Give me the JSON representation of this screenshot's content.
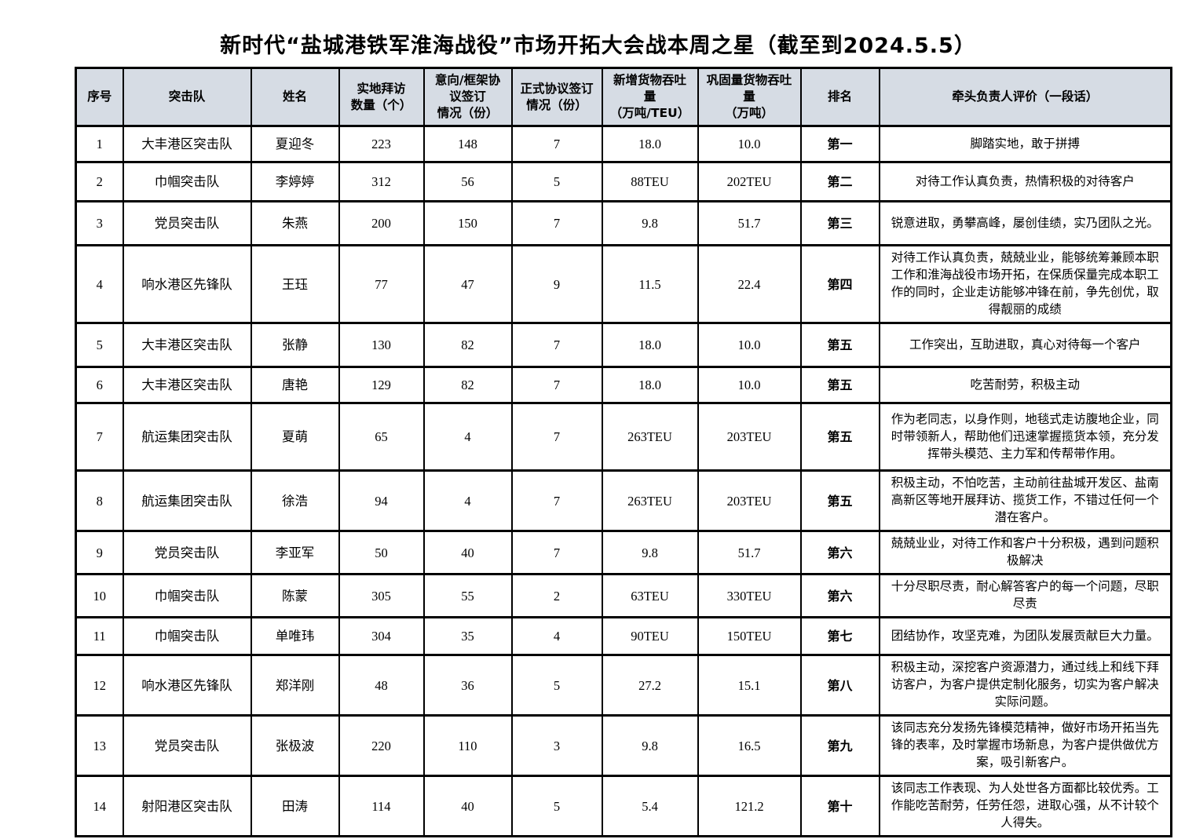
{
  "title": "新时代“盐城港铁军淮海战役”市场开拓大会战本周之星（截至到2024.5.5）",
  "table": {
    "headers": [
      "序号",
      "突击队",
      "姓名",
      "实地拜访\n数量（个）",
      "意向/框架协议签订\n情况（份）",
      "正式协议签订\n情况（份）",
      "新增货物吞吐量\n（万吨/TEU）",
      "巩固量货物吞吐量\n（万吨）",
      "排名",
      "牵头负责人评价（一段话）"
    ],
    "col_names": [
      "cell-index",
      "cell-team",
      "cell-name",
      "cell-visits",
      "cell-intent-agreements",
      "cell-formal-agreements",
      "cell-new-throughput",
      "cell-consolidated-throughput",
      "cell-rank",
      "cell-evaluation"
    ],
    "header_bg_color": "#d6dce4",
    "rows": [
      [
        "1",
        "大丰港区突击队",
        "夏迎冬",
        "223",
        "148",
        "7",
        "18.0",
        "10.0",
        "第一",
        "脚踏实地，敢于拼搏"
      ],
      [
        "2",
        "巾帼突击队",
        "李婷婷",
        "312",
        "56",
        "5",
        "88TEU",
        "202TEU",
        "第二",
        "对待工作认真负责，热情积极的对待客户"
      ],
      [
        "3",
        "党员突击队",
        "朱燕",
        "200",
        "150",
        "7",
        "9.8",
        "51.7",
        "第三",
        "锐意进取，勇攀高峰，屡创佳绩，实乃团队之光。"
      ],
      [
        "4",
        "响水港区先锋队",
        "王珏",
        "77",
        "47",
        "9",
        "11.5",
        "22.4",
        "第四",
        "对待工作认真负责，兢兢业业，能够统筹兼顾本职工作和淮海战役市场开拓，在保质保量完成本职工作的同时，企业走访能够冲锋在前，争先创优，取得靓丽的成绩"
      ],
      [
        "5",
        "大丰港区突击队",
        "张静",
        "130",
        "82",
        "7",
        "18.0",
        "10.0",
        "第五",
        "工作突出，互助进取，真心对待每一个客户"
      ],
      [
        "6",
        "大丰港区突击队",
        "唐艳",
        "129",
        "82",
        "7",
        "18.0",
        "10.0",
        "第五",
        "吃苦耐劳，积极主动"
      ],
      [
        "7",
        "航运集团突击队",
        "夏萌",
        "65",
        "4",
        "7",
        "263TEU",
        "203TEU",
        "第五",
        "作为老同志，以身作则，地毯式走访腹地企业，同时带领新人，帮助他们迅速掌握揽货本领，充分发挥带头模范、主力军和传帮带作用。"
      ],
      [
        "8",
        "航运集团突击队",
        "徐浩",
        "94",
        "4",
        "7",
        "263TEU",
        "203TEU",
        "第五",
        "积极主动，不怕吃苦，主动前往盐城开发区、盐南高新区等地开展拜访、揽货工作，不错过任何一个潜在客户。"
      ],
      [
        "9",
        "党员突击队",
        "李亚军",
        "50",
        "40",
        "7",
        "9.8",
        "51.7",
        "第六",
        "兢兢业业，对待工作和客户十分积极，遇到问题积极解决"
      ],
      [
        "10",
        "巾帼突击队",
        "陈蒙",
        "305",
        "55",
        "2",
        "63TEU",
        "330TEU",
        "第六",
        "十分尽职尽责，耐心解答客户的每一个问题，尽职尽责"
      ],
      [
        "11",
        "巾帼突击队",
        "单唯玮",
        "304",
        "35",
        "4",
        "90TEU",
        "150TEU",
        "第七",
        "团结协作，攻坚克难，为团队发展贡献巨大力量。"
      ],
      [
        "12",
        "响水港区先锋队",
        "郑洋刚",
        "48",
        "36",
        "5",
        "27.2",
        "15.1",
        "第八",
        "积极主动，深挖客户资源潜力，通过线上和线下拜访客户，为客户提供定制化服务，切实为客户解决实际问题。"
      ],
      [
        "13",
        "党员突击队",
        "张极波",
        "220",
        "110",
        "3",
        "9.8",
        "16.5",
        "第九",
        "该同志充分发扬先锋模范精神，做好市场开拓当先锋的表率，及时掌握市场新息，为客户提供做优方案，吸引新客户。"
      ],
      [
        "14",
        "射阳港区突击队",
        "田涛",
        "114",
        "40",
        "5",
        "5.4",
        "121.2",
        "第十",
        "该同志工作表现、为人处世各方面都比较优秀。工作能吃苦耐劳，任劳任怨，进取心强，从不计较个人得失。"
      ]
    ]
  }
}
